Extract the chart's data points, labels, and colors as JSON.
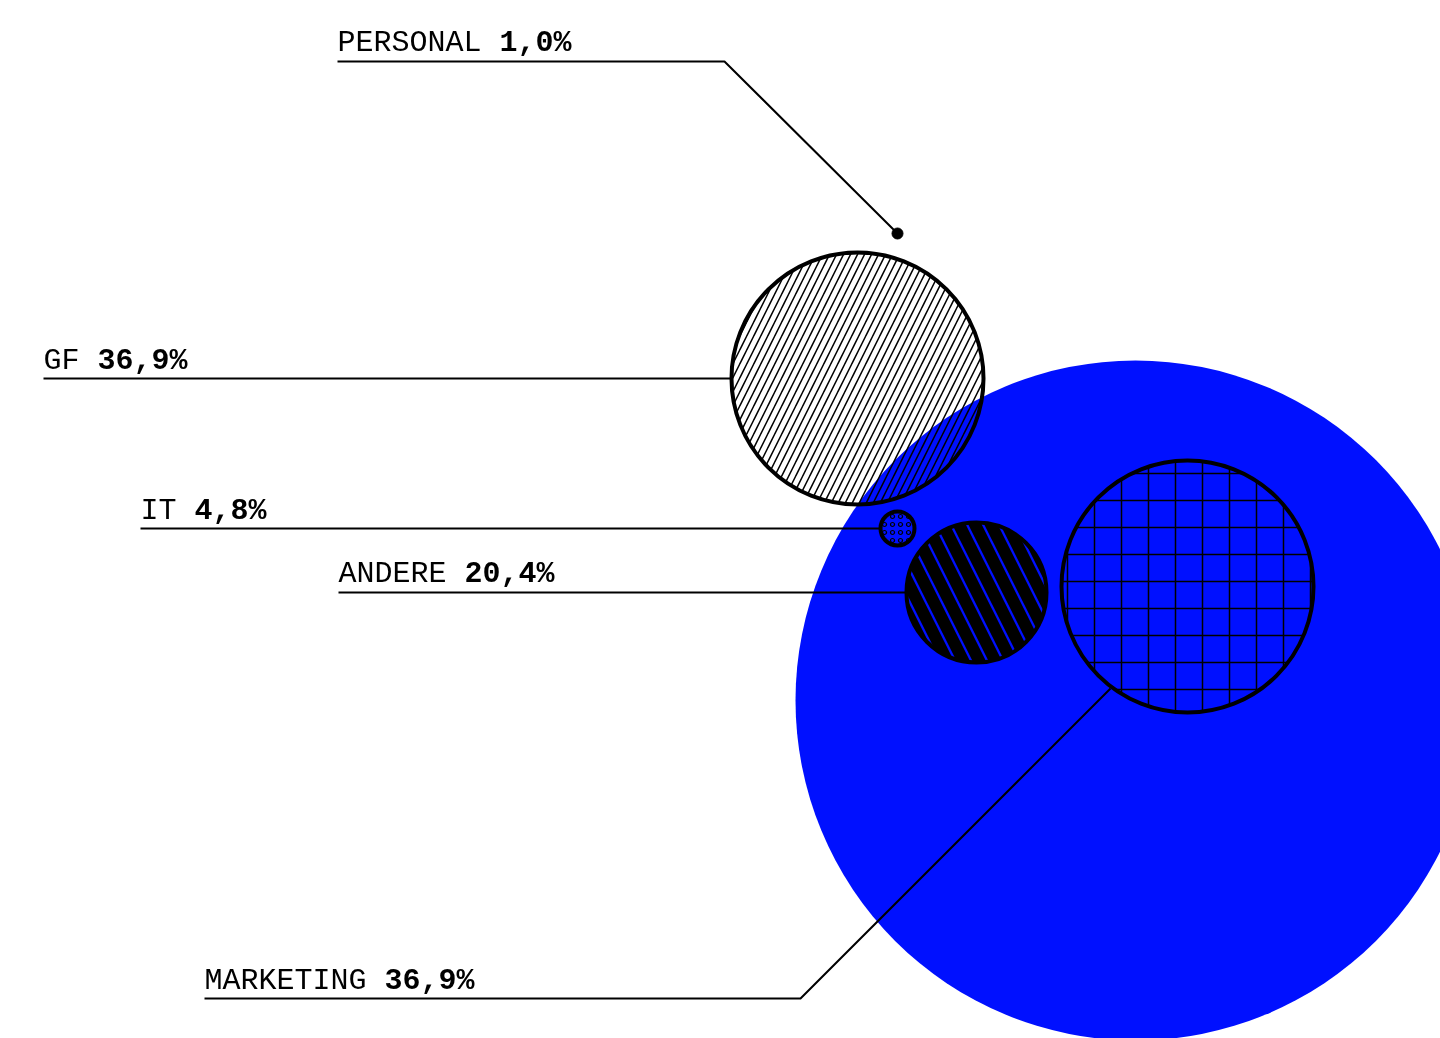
{
  "chart_data": {
    "type": "other",
    "categories": [
      "PERSONAL",
      "GF",
      "IT",
      "ANDERE",
      "MARKETING"
    ],
    "values": [
      1.0,
      36.9,
      4.8,
      20.4,
      36.9
    ],
    "value_labels": [
      "1,0%",
      "36,9%",
      "4,8%",
      "20,4%",
      "36,9%"
    ],
    "color": "#0010ff"
  }
}
